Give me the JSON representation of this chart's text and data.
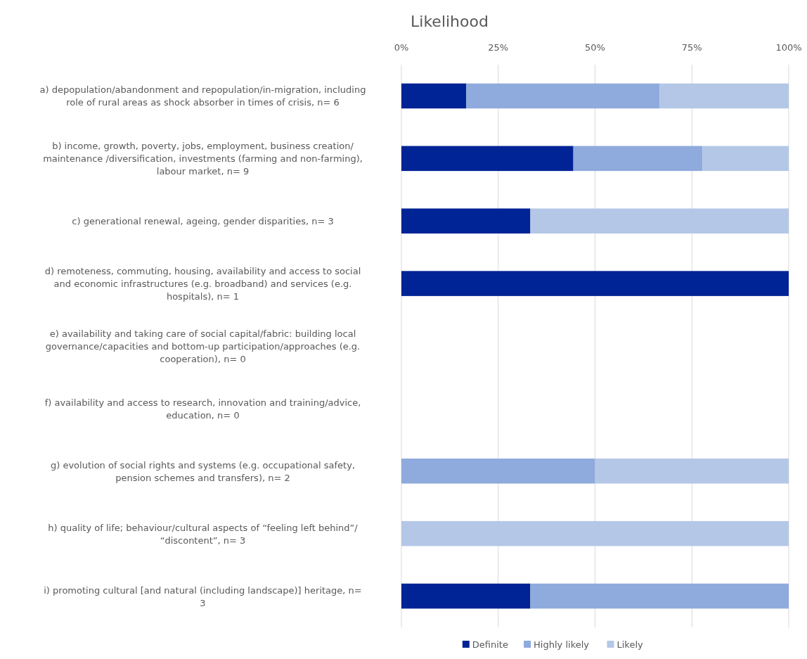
{
  "chart_data": {
    "type": "bar",
    "orientation": "horizontal",
    "stacked": true,
    "title": "Likelihood",
    "categories": [
      "a) depopulation/abandonment and repopulation/in-migration, including role of rural areas as shock absorber in times of crisis, n= 6",
      "b) income, growth, poverty, jobs, employment, business creation/ maintenance /diversification, investments (farming and non-farming), labour market, n= 9",
      "c) generational renewal, ageing, gender disparities, n= 3",
      "d) remoteness, commuting, housing, availability and access to social and economic infrastructures (e.g. broadband) and services (e.g. hospitals), n= 1",
      "e) availability and taking care of social capital/fabric: building local governance/capacities and bottom-up participation/approaches (e.g. cooperation), n= 0",
      "f) availability and access to research, innovation and training/advice, education, n= 0",
      "g) evolution of social rights and systems (e.g. occupational safety, pension schemes and transfers), n= 2",
      "h) quality of life; behaviour/cultural  aspects of “feeling left behind”/ “discontent”, n= 3",
      "i) promoting cultural [and natural (including landscape)] heritage, n= 3"
    ],
    "series": [
      {
        "name": "Definite",
        "color": "#002395",
        "values": [
          16.7,
          44.4,
          33.3,
          100,
          0,
          0,
          0,
          0,
          33.3
        ]
      },
      {
        "name": "Highly likely",
        "color": "#8faadc",
        "values": [
          50,
          33.3,
          0,
          0,
          0,
          0,
          50,
          0,
          66.7
        ]
      },
      {
        "name": "Likely",
        "color": "#b4c7e7",
        "values": [
          33.3,
          22.3,
          66.7,
          0,
          0,
          0,
          50,
          100,
          0
        ]
      }
    ],
    "xlim": [
      0,
      100
    ],
    "xticks": [
      {
        "value": 0,
        "label": "0%"
      },
      {
        "value": 25,
        "label": "25%"
      },
      {
        "value": 50,
        "label": "50%"
      },
      {
        "value": 75,
        "label": "75%"
      },
      {
        "value": 100,
        "label": "100%"
      }
    ],
    "grid": "x",
    "legend": "bottom"
  }
}
